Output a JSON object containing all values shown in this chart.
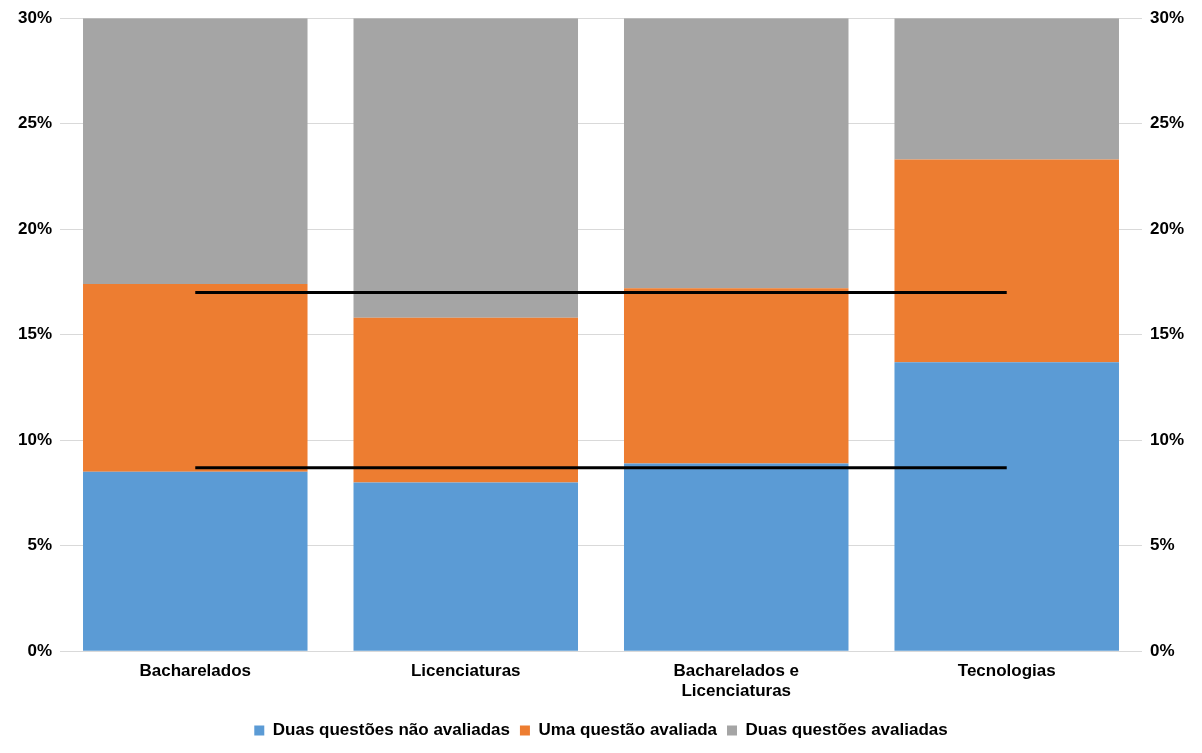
{
  "chart_data": {
    "type": "bar",
    "stacked": true,
    "categories": [
      "Bacharelados",
      "Licenciaturas",
      "Bacharelados e Licenciaturas",
      "Tecnologias"
    ],
    "series": [
      {
        "name": "Duas questões não avaliadas",
        "color": "#5b9bd5",
        "values": [
          8.5,
          8.0,
          8.9,
          13.7
        ]
      },
      {
        "name": "Uma questão avaliada",
        "color": "#ed7d31",
        "values": [
          8.9,
          7.8,
          8.3,
          9.6
        ]
      },
      {
        "name": "Duas questões avaliadas",
        "color": "#a5a5a5",
        "values": [
          12.6,
          14.2,
          12.8,
          6.7
        ]
      },
      {
        "type": "line",
        "color": "#000000",
        "values": [
          17.0,
          17.0,
          17.0,
          17.0
        ]
      },
      {
        "type": "line",
        "color": "#000000",
        "values": [
          8.7,
          8.7,
          8.7,
          8.7
        ]
      }
    ],
    "ylim": [
      0,
      30
    ],
    "yticks": [
      {
        "value": 0,
        "label": "0%"
      },
      {
        "value": 5,
        "label": "5%"
      },
      {
        "value": 10,
        "label": "10%"
      },
      {
        "value": 15,
        "label": "15%"
      },
      {
        "value": 20,
        "label": "20%"
      },
      {
        "value": 25,
        "label": "25%"
      },
      {
        "value": 30,
        "label": "30%"
      }
    ],
    "y2lim": [
      0,
      30
    ],
    "y2ticks": [
      {
        "value": 0,
        "label": "0%"
      },
      {
        "value": 5,
        "label": "5%"
      },
      {
        "value": 10,
        "label": "10%"
      },
      {
        "value": 15,
        "label": "15%"
      },
      {
        "value": 20,
        "label": "20%"
      },
      {
        "value": 25,
        "label": "25%"
      },
      {
        "value": 30,
        "label": "30%"
      }
    ],
    "grid": "y",
    "legend": "bottom",
    "marker": "none"
  }
}
